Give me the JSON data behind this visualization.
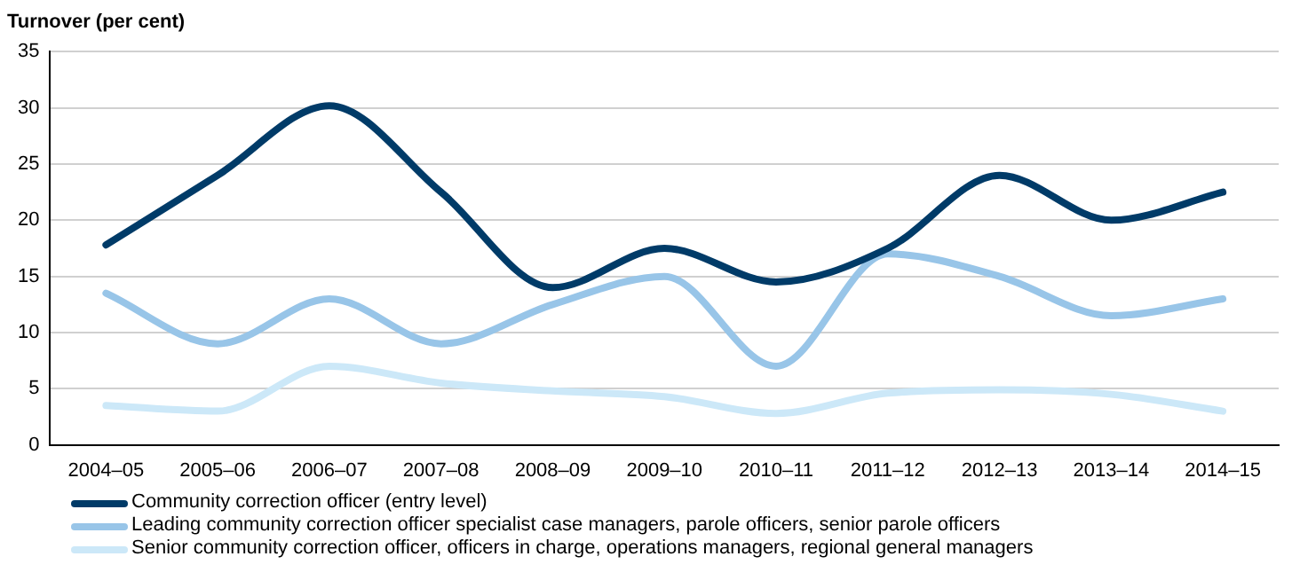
{
  "chart_data": {
    "type": "line",
    "ylabel": "Turnover (per cent)",
    "categories": [
      "2004–05",
      "2005–06",
      "2006–07",
      "2007–08",
      "2008–09",
      "2009–10",
      "2010–11",
      "2011–12",
      "2012–13",
      "2013–14",
      "2014–15"
    ],
    "series": [
      {
        "name": "Community correction officer (entry level)",
        "color": "#003b68",
        "values": [
          17.8,
          24,
          30.2,
          22.5,
          14,
          17.5,
          14.5,
          17.5,
          24,
          20,
          22.5
        ]
      },
      {
        "name": "Leading community correction officer specialist case managers, parole officers, senior parole officers",
        "color": "#98c5e8",
        "values": [
          13.5,
          9,
          13,
          9,
          12.5,
          15,
          7,
          17,
          15,
          11.5,
          13
        ]
      },
      {
        "name": "Senior community correction officer, officers in charge, operations managers, regional general managers",
        "color": "#cce8f8",
        "values": [
          3.5,
          3,
          7,
          5.5,
          4.8,
          4.3,
          2.8,
          4.6,
          4.9,
          4.5,
          3
        ]
      }
    ],
    "ylim": [
      0,
      35
    ],
    "yticks": [
      0,
      5,
      10,
      15,
      20,
      25,
      30,
      35
    ],
    "grid": "y",
    "legend": "bottom left",
    "marker": "none",
    "line_style": "solid"
  }
}
